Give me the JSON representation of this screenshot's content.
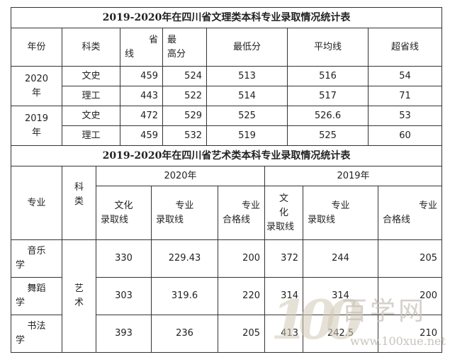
{
  "table1": {
    "title": "2019-2020年在四川省文理类本科专业录取情况统计表",
    "headers": {
      "year": "年份",
      "category": "科类",
      "provincial_a": "省",
      "provincial_b": "线",
      "highest_a": "最",
      "highest_b": "高分",
      "lowest": "最低分",
      "average": "平均线",
      "above": "超省线"
    },
    "groups": [
      {
        "year_a": "2020",
        "year_b": "年",
        "rows": [
          {
            "category": "文史",
            "provincial": "459",
            "highest": "524",
            "lowest": "513",
            "average": "516",
            "above": "54"
          },
          {
            "category": "理工",
            "provincial": "443",
            "highest": "522",
            "lowest": "514",
            "average": "517",
            "above": "71"
          }
        ]
      },
      {
        "year_a": "2019",
        "year_b": "年",
        "rows": [
          {
            "category": "文史",
            "provincial": "472",
            "highest": "529",
            "lowest": "525",
            "average": "526.6",
            "above": "53"
          },
          {
            "category": "理工",
            "provincial": "459",
            "highest": "532",
            "lowest": "519",
            "average": "525",
            "above": "60"
          }
        ]
      }
    ]
  },
  "table2": {
    "title": "2019-2020年在四川省艺术类本科专业录取情况统计表",
    "headers": {
      "major": "专业",
      "category_a": "科",
      "category_b": "类",
      "year2020": "2020年",
      "year2019": "2019年",
      "culture_a": "文化",
      "culture_b": "录取线",
      "major_line_a": "专业",
      "major_line_b": "录取线",
      "qualify_a": "专业",
      "qualify_b": "合格线",
      "culture19_a": "文",
      "culture19_b": "化",
      "culture19_c": "录取线",
      "major19_a": "专业",
      "major19_b": "录取线",
      "qualify19_a": "专业",
      "qualify19_b": "合格线"
    },
    "category_a": "艺",
    "category_b": "术",
    "rows": [
      {
        "major_a": "音乐",
        "major_b": "学",
        "c20": "330",
        "m20": "229.43",
        "q20": "200",
        "c19": "372",
        "m19": "244",
        "q19": "205"
      },
      {
        "major_a": "舞蹈",
        "major_b": "学",
        "c20": "303",
        "m20": "319.6",
        "q20": "220",
        "c19": "314",
        "m19": "314",
        "q19": "200"
      },
      {
        "major_a": "书法",
        "major_b": "学",
        "c20": "393",
        "m20": "236",
        "q20": "205",
        "c19": "413",
        "m19": "242.5",
        "q19": "210"
      }
    ]
  },
  "watermark": {
    "logo": "100",
    "site_name": "百学网",
    "url": "www.100xue.net"
  }
}
